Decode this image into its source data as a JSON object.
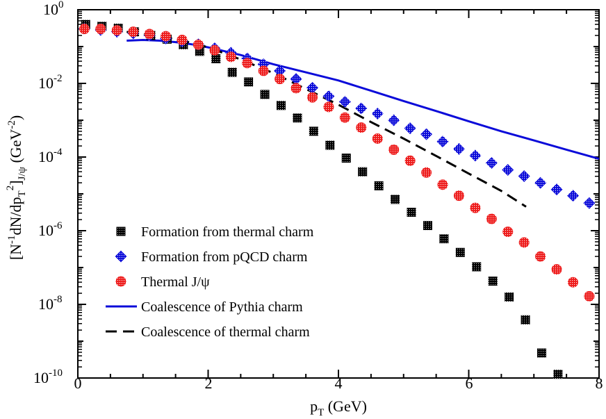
{
  "chart_data": {
    "type": "scatter",
    "xlabel": "p_T (GeV)",
    "ylabel": "[N^-1 dN/dp_T^2]_J/ψ (GeV^-2)",
    "xlim": [
      0,
      8
    ],
    "ylim_log10": [
      -10,
      0
    ],
    "y_scale": "log",
    "x_ticks": [
      "0",
      "2",
      "4",
      "6",
      "8"
    ],
    "y_ticks": [
      {
        "base": "10",
        "exp": "0"
      },
      {
        "base": "10",
        "exp": "-2"
      },
      {
        "base": "10",
        "exp": "-4"
      },
      {
        "base": "10",
        "exp": "-6"
      },
      {
        "base": "10",
        "exp": "-8"
      },
      {
        "base": "10",
        "exp": "-10"
      }
    ],
    "legend_position": "lower-left",
    "series": [
      {
        "name": "Formation from thermal charm",
        "marker": "square",
        "color": "#000000",
        "x": [
          0.12,
          0.37,
          0.62,
          0.87,
          1.12,
          1.37,
          1.62,
          1.87,
          2.12,
          2.37,
          2.62,
          2.87,
          3.12,
          3.37,
          3.62,
          3.87,
          4.12,
          4.37,
          4.62,
          4.87,
          5.12,
          5.37,
          5.62,
          5.87,
          6.12,
          6.37,
          6.62,
          6.87,
          7.12,
          7.37
        ],
        "log10_y": [
          -0.4,
          -0.45,
          -0.5,
          -0.6,
          -0.7,
          -0.8,
          -0.95,
          -1.13,
          -1.33,
          -1.7,
          -1.96,
          -2.3,
          -2.6,
          -2.94,
          -3.3,
          -3.68,
          -4.03,
          -4.4,
          -4.78,
          -5.15,
          -5.5,
          -5.86,
          -6.22,
          -6.59,
          -6.98,
          -7.37,
          -7.8,
          -8.42,
          -9.32,
          -9.9
        ]
      },
      {
        "name": "Formation from pQCD charm",
        "marker": "diamond",
        "color": "#0b0bd9",
        "x": [
          0.1,
          0.35,
          0.6,
          0.85,
          1.1,
          1.35,
          1.6,
          1.85,
          2.1,
          2.35,
          2.6,
          2.85,
          3.1,
          3.35,
          3.6,
          3.85,
          4.1,
          4.35,
          4.6,
          4.85,
          5.1,
          5.35,
          5.6,
          5.85,
          6.1,
          6.35,
          6.6,
          6.85,
          7.1,
          7.35,
          7.6,
          7.85
        ],
        "log10_y": [
          -0.52,
          -0.55,
          -0.6,
          -0.64,
          -0.7,
          -0.78,
          -0.86,
          -0.94,
          -1.05,
          -1.17,
          -1.32,
          -1.48,
          -1.66,
          -1.88,
          -2.12,
          -2.35,
          -2.5,
          -2.68,
          -2.82,
          -3.0,
          -3.22,
          -3.38,
          -3.58,
          -3.78,
          -3.96,
          -4.16,
          -4.35,
          -4.52,
          -4.7,
          -4.88,
          -5.05,
          -5.25
        ]
      },
      {
        "name": "Thermal J/ψ",
        "marker": "circle",
        "color": "#ee1c1c",
        "x": [
          0.1,
          0.35,
          0.6,
          0.85,
          1.1,
          1.35,
          1.6,
          1.85,
          2.1,
          2.35,
          2.6,
          2.85,
          3.1,
          3.35,
          3.6,
          3.85,
          4.1,
          4.35,
          4.6,
          4.85,
          5.1,
          5.35,
          5.6,
          5.85,
          6.1,
          6.35,
          6.6,
          6.85,
          7.1,
          7.35,
          7.6,
          7.85
        ],
        "log10_y": [
          -0.52,
          -0.52,
          -0.56,
          -0.6,
          -0.66,
          -0.72,
          -0.82,
          -0.95,
          -1.1,
          -1.28,
          -1.45,
          -1.66,
          -1.88,
          -2.13,
          -2.38,
          -2.64,
          -2.93,
          -3.2,
          -3.5,
          -3.8,
          -4.1,
          -4.42,
          -4.75,
          -5.05,
          -5.38,
          -5.68,
          -6.03,
          -6.32,
          -6.7,
          -7.05,
          -7.4,
          -7.78
        ]
      },
      {
        "name": "Coalescence of Pythia charm",
        "marker": "line-solid",
        "color": "#0b0bd9",
        "x": [
          0.75,
          1.0,
          1.25,
          1.5,
          1.75,
          2.0,
          2.5,
          3.0,
          3.5,
          4.0,
          4.5,
          5.0,
          5.5,
          6.0,
          6.5,
          7.0,
          7.5,
          8.0
        ],
        "log10_y": [
          -0.84,
          -0.82,
          -0.84,
          -0.88,
          -0.94,
          -1.02,
          -1.23,
          -1.48,
          -1.7,
          -1.92,
          -2.2,
          -2.48,
          -2.75,
          -3.03,
          -3.3,
          -3.55,
          -3.8,
          -4.05
        ]
      },
      {
        "name": "Coalescence of thermal charm",
        "marker": "line-dashed",
        "color": "#000000",
        "x": [
          0.75,
          1.0,
          1.25,
          1.5,
          1.75,
          2.0,
          2.5,
          3.0,
          3.5,
          4.0,
          4.5,
          5.0,
          5.5,
          6.0,
          6.5,
          6.88
        ],
        "log10_y": [
          -0.6,
          -0.66,
          -0.72,
          -0.8,
          -0.9,
          -1.02,
          -1.35,
          -1.72,
          -2.15,
          -2.58,
          -3.05,
          -3.5,
          -3.97,
          -4.45,
          -4.92,
          -5.35
        ]
      }
    ]
  }
}
